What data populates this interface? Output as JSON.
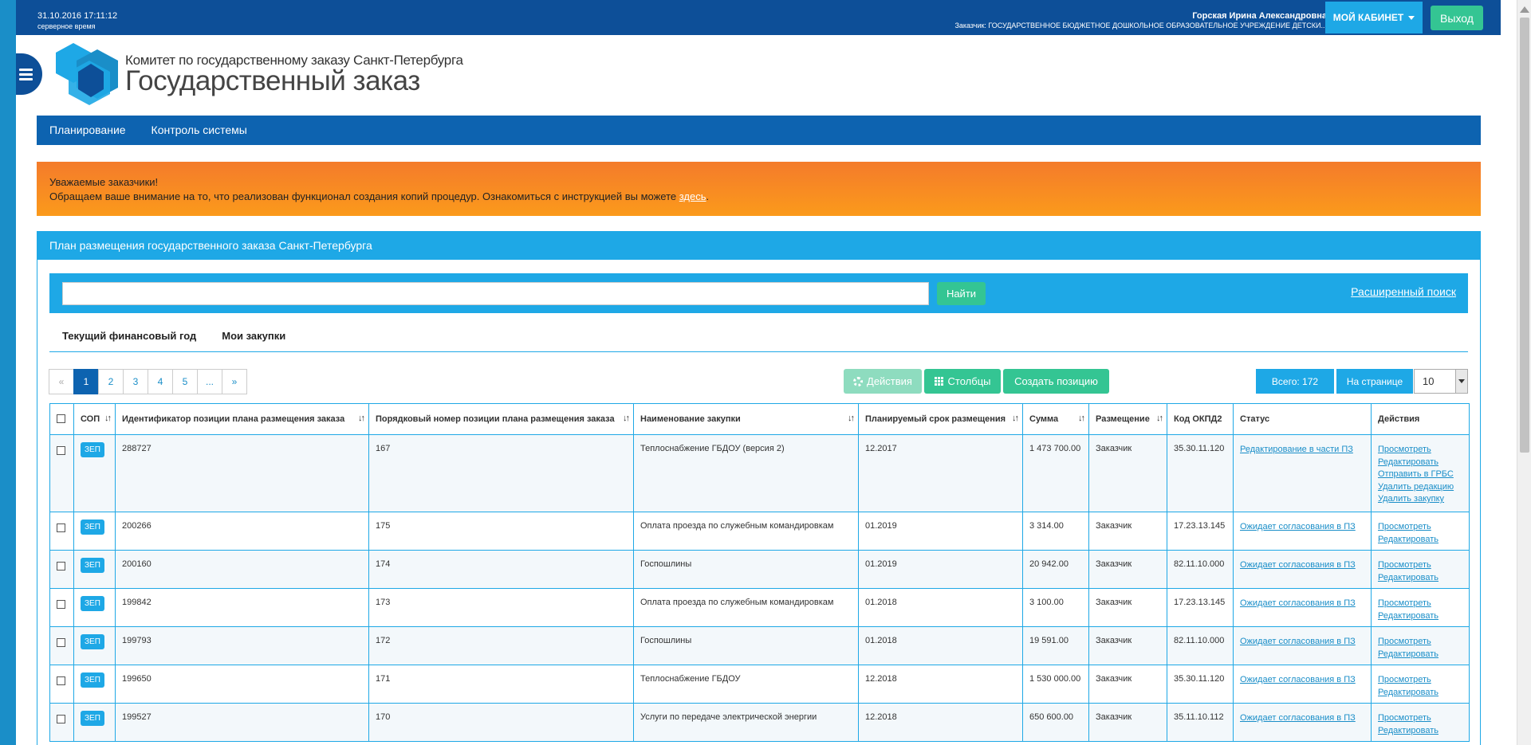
{
  "topbar": {
    "datetime": "31.10.2016 17:11:12",
    "server_time": "серверное время",
    "user_name": "Горская Ирина Александровна",
    "customer": "Заказчик: ГОСУДАРСТВЕННОЕ БЮДЖЕТНОЕ ДОШКОЛЬНОЕ ОБРАЗОВАТЕЛЬНОЕ УЧРЕЖДЕНИЕ ДЕТСКИ...",
    "cabinet_label": "МОЙ КАБИНЕТ",
    "exit_label": "Выход"
  },
  "header": {
    "committee": "Комитет по государственному заказу Санкт-Петербурга",
    "title": "Государственный заказ"
  },
  "nav": [
    "Планирование",
    "Контроль системы"
  ],
  "notice": {
    "line1": "Уважаемые заказчики!",
    "line2": "Обращаем ваше внимание на то, что реализован функционал создания копий процедур. Ознакомиться с инструкцией вы можете ",
    "link": "здесь",
    "end": "."
  },
  "panel": {
    "title": "План размещения государственного заказа Санкт-Петербурга",
    "search_value": "",
    "find_label": "Найти",
    "advanced_search": "Расширенный поиск",
    "tabs": [
      "Текущий финансовый год",
      "Мои закупки"
    ]
  },
  "pager": [
    "«",
    "1",
    "2",
    "3",
    "4",
    "5",
    "...",
    "»"
  ],
  "toolbar": {
    "actions_label": "Действия",
    "columns_label": "Столбцы",
    "create_label": "Создать позицию",
    "total_label": "Всего: 172",
    "per_page_label": "На странице",
    "per_page_value": "10"
  },
  "table": {
    "headers": [
      "СОП",
      "Идентификатор позиции плана размещения заказа",
      "Порядковый номер позиции плана размещения заказа",
      "Наименование закупки",
      "Планируемый срок размещения",
      "Сумма",
      "Размещение",
      "Код ОКПД2",
      "Статус",
      "Действия"
    ],
    "sort_icon": "↓↑",
    "rows": [
      {
        "sop": "ЗЕП",
        "id": "288727",
        "num": "167",
        "name": "Теплоснабжение ГБДОУ (версия 2)",
        "term": "12.2017",
        "sum": "1 473 700.00",
        "placement": "Заказчик",
        "okpd": "35.30.11.120",
        "status": "Редактирование в части ПЗ",
        "actions": [
          "Просмотреть",
          "Редактировать",
          "Отправить в ГРБС",
          "Удалить редакцию",
          "Удалить закупку"
        ]
      },
      {
        "sop": "ЗЕП",
        "id": "200266",
        "num": "175",
        "name": "Оплата проезда по служебным командировкам",
        "term": "01.2019",
        "sum": "3 314.00",
        "placement": "Заказчик",
        "okpd": "17.23.13.145",
        "status": "Ожидает согласования в ПЗ",
        "actions": [
          "Просмотреть",
          "Редактировать"
        ]
      },
      {
        "sop": "ЗЕП",
        "id": "200160",
        "num": "174",
        "name": "Госпошлины",
        "term": "01.2019",
        "sum": "20 942.00",
        "placement": "Заказчик",
        "okpd": "82.11.10.000",
        "status": "Ожидает согласования в ПЗ",
        "actions": [
          "Просмотреть",
          "Редактировать"
        ]
      },
      {
        "sop": "ЗЕП",
        "id": "199842",
        "num": "173",
        "name": "Оплата проезда по служебным командировкам",
        "term": "01.2018",
        "sum": "3 100.00",
        "placement": "Заказчик",
        "okpd": "17.23.13.145",
        "status": "Ожидает согласования в ПЗ",
        "actions": [
          "Просмотреть",
          "Редактировать"
        ]
      },
      {
        "sop": "ЗЕП",
        "id": "199793",
        "num": "172",
        "name": "Госпошлины",
        "term": "01.2018",
        "sum": "19 591.00",
        "placement": "Заказчик",
        "okpd": "82.11.10.000",
        "status": "Ожидает согласования в ПЗ",
        "actions": [
          "Просмотреть",
          "Редактировать"
        ]
      },
      {
        "sop": "ЗЕП",
        "id": "199650",
        "num": "171",
        "name": "Теплоснабжение ГБДОУ",
        "term": "12.2018",
        "sum": "1 530 000.00",
        "placement": "Заказчик",
        "okpd": "35.30.11.120",
        "status": "Ожидает согласования в ПЗ",
        "actions": [
          "Просмотреть",
          "Редактировать"
        ]
      },
      {
        "sop": "ЗЕП",
        "id": "199527",
        "num": "170",
        "name": "Услуги по передаче электрической энергии",
        "term": "12.2018",
        "sum": "650 600.00",
        "placement": "Заказчик",
        "okpd": "35.11.10.112",
        "status": "Ожидает согласования в ПЗ",
        "actions": [
          "Просмотреть",
          "Редактировать"
        ]
      }
    ]
  },
  "colors": {
    "topbar": "#0d4f98",
    "nav": "#0d63b0",
    "accent": "#1ea8e6",
    "green": "#34c593",
    "notice": "#f88a22"
  },
  "icons": [
    "menu-icon",
    "gear-icon",
    "grid-icon",
    "caret-down-icon",
    "sort-icon"
  ]
}
